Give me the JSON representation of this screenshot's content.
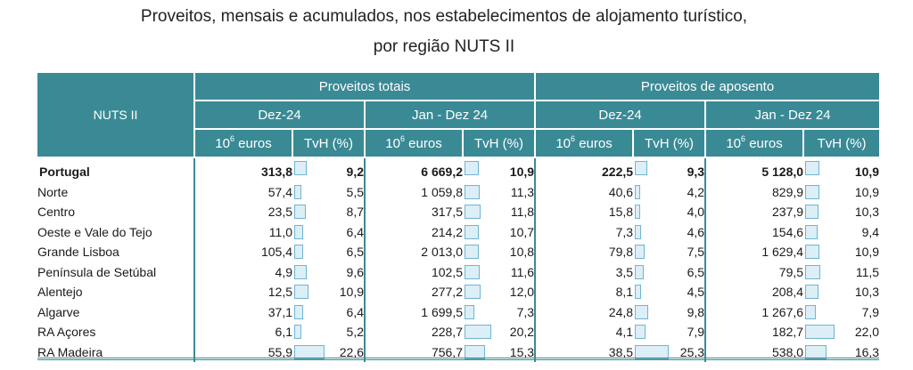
{
  "title_line1": "Proveitos, mensais e acumulados, nos estabelecimentos de alojamento turístico,",
  "title_line2": "por região NUTS II",
  "header": {
    "nuts": "NUTS II",
    "group1": "Proveitos totais",
    "group2": "Proveitos de aposento",
    "period1": "Dez-24",
    "period2": "Jan - Dez 24",
    "unit_base": "10",
    "unit_exp": "6",
    "unit_word": " euros",
    "tvh": "TvH (%)"
  },
  "rows": [
    {
      "name": "Portugal",
      "v1": "313,8",
      "p1": "9,2",
      "v2": "6 669,2",
      "p2": "10,9",
      "v3": "222,5",
      "p3": "9,3",
      "v4": "5 128,0",
      "p4": "10,9"
    },
    {
      "name": "Norte",
      "v1": "57,4",
      "p1": "5,5",
      "v2": "1 059,8",
      "p2": "11,3",
      "v3": "40,6",
      "p3": "4,2",
      "v4": "829,9",
      "p4": "10,9"
    },
    {
      "name": "Centro",
      "v1": "23,5",
      "p1": "8,7",
      "v2": "317,5",
      "p2": "11,8",
      "v3": "15,8",
      "p3": "4,0",
      "v4": "237,9",
      "p4": "10,3"
    },
    {
      "name": "Oeste e Vale do  Tejo",
      "v1": "11,0",
      "p1": "6,4",
      "v2": "214,2",
      "p2": "10,7",
      "v3": "7,3",
      "p3": "4,6",
      "v4": "154,6",
      "p4": "9,4"
    },
    {
      "name": "Grande Lisboa",
      "v1": "105,4",
      "p1": "6,5",
      "v2": "2 013,0",
      "p2": "10,8",
      "v3": "79,8",
      "p3": "7,5",
      "v4": "1 629,4",
      "p4": "10,9"
    },
    {
      "name": "Península de Setúbal",
      "v1": "4,9",
      "p1": "9,6",
      "v2": "102,5",
      "p2": "11,6",
      "v3": "3,5",
      "p3": "6,5",
      "v4": "79,5",
      "p4": "11,5"
    },
    {
      "name": "Alentejo",
      "v1": "12,5",
      "p1": "10,9",
      "v2": "277,2",
      "p2": "12,0",
      "v3": "8,1",
      "p3": "4,5",
      "v4": "208,4",
      "p4": "10,3"
    },
    {
      "name": "Algarve",
      "v1": "37,1",
      "p1": "6,4",
      "v2": "1 699,5",
      "p2": "7,3",
      "v3": "24,8",
      "p3": "9,8",
      "v4": "1 267,6",
      "p4": "7,9"
    },
    {
      "name": "RA Açores",
      "v1": "6,1",
      "p1": "5,2",
      "v2": "228,7",
      "p2": "20,2",
      "v3": "4,1",
      "p3": "7,9",
      "v4": "182,7",
      "p4": "22,0"
    },
    {
      "name": "RA Madeira",
      "v1": "55,9",
      "p1": "22,6",
      "v2": "756,7",
      "p2": "15,3",
      "v3": "38,5",
      "p3": "25,3",
      "v4": "538,0",
      "p4": "16,3"
    }
  ],
  "bar_max_percent": 25.3,
  "colors": {
    "header_bg": "#3a8a95",
    "bar_border": "#6fb5d0",
    "bar_fill": "#dceef6"
  }
}
